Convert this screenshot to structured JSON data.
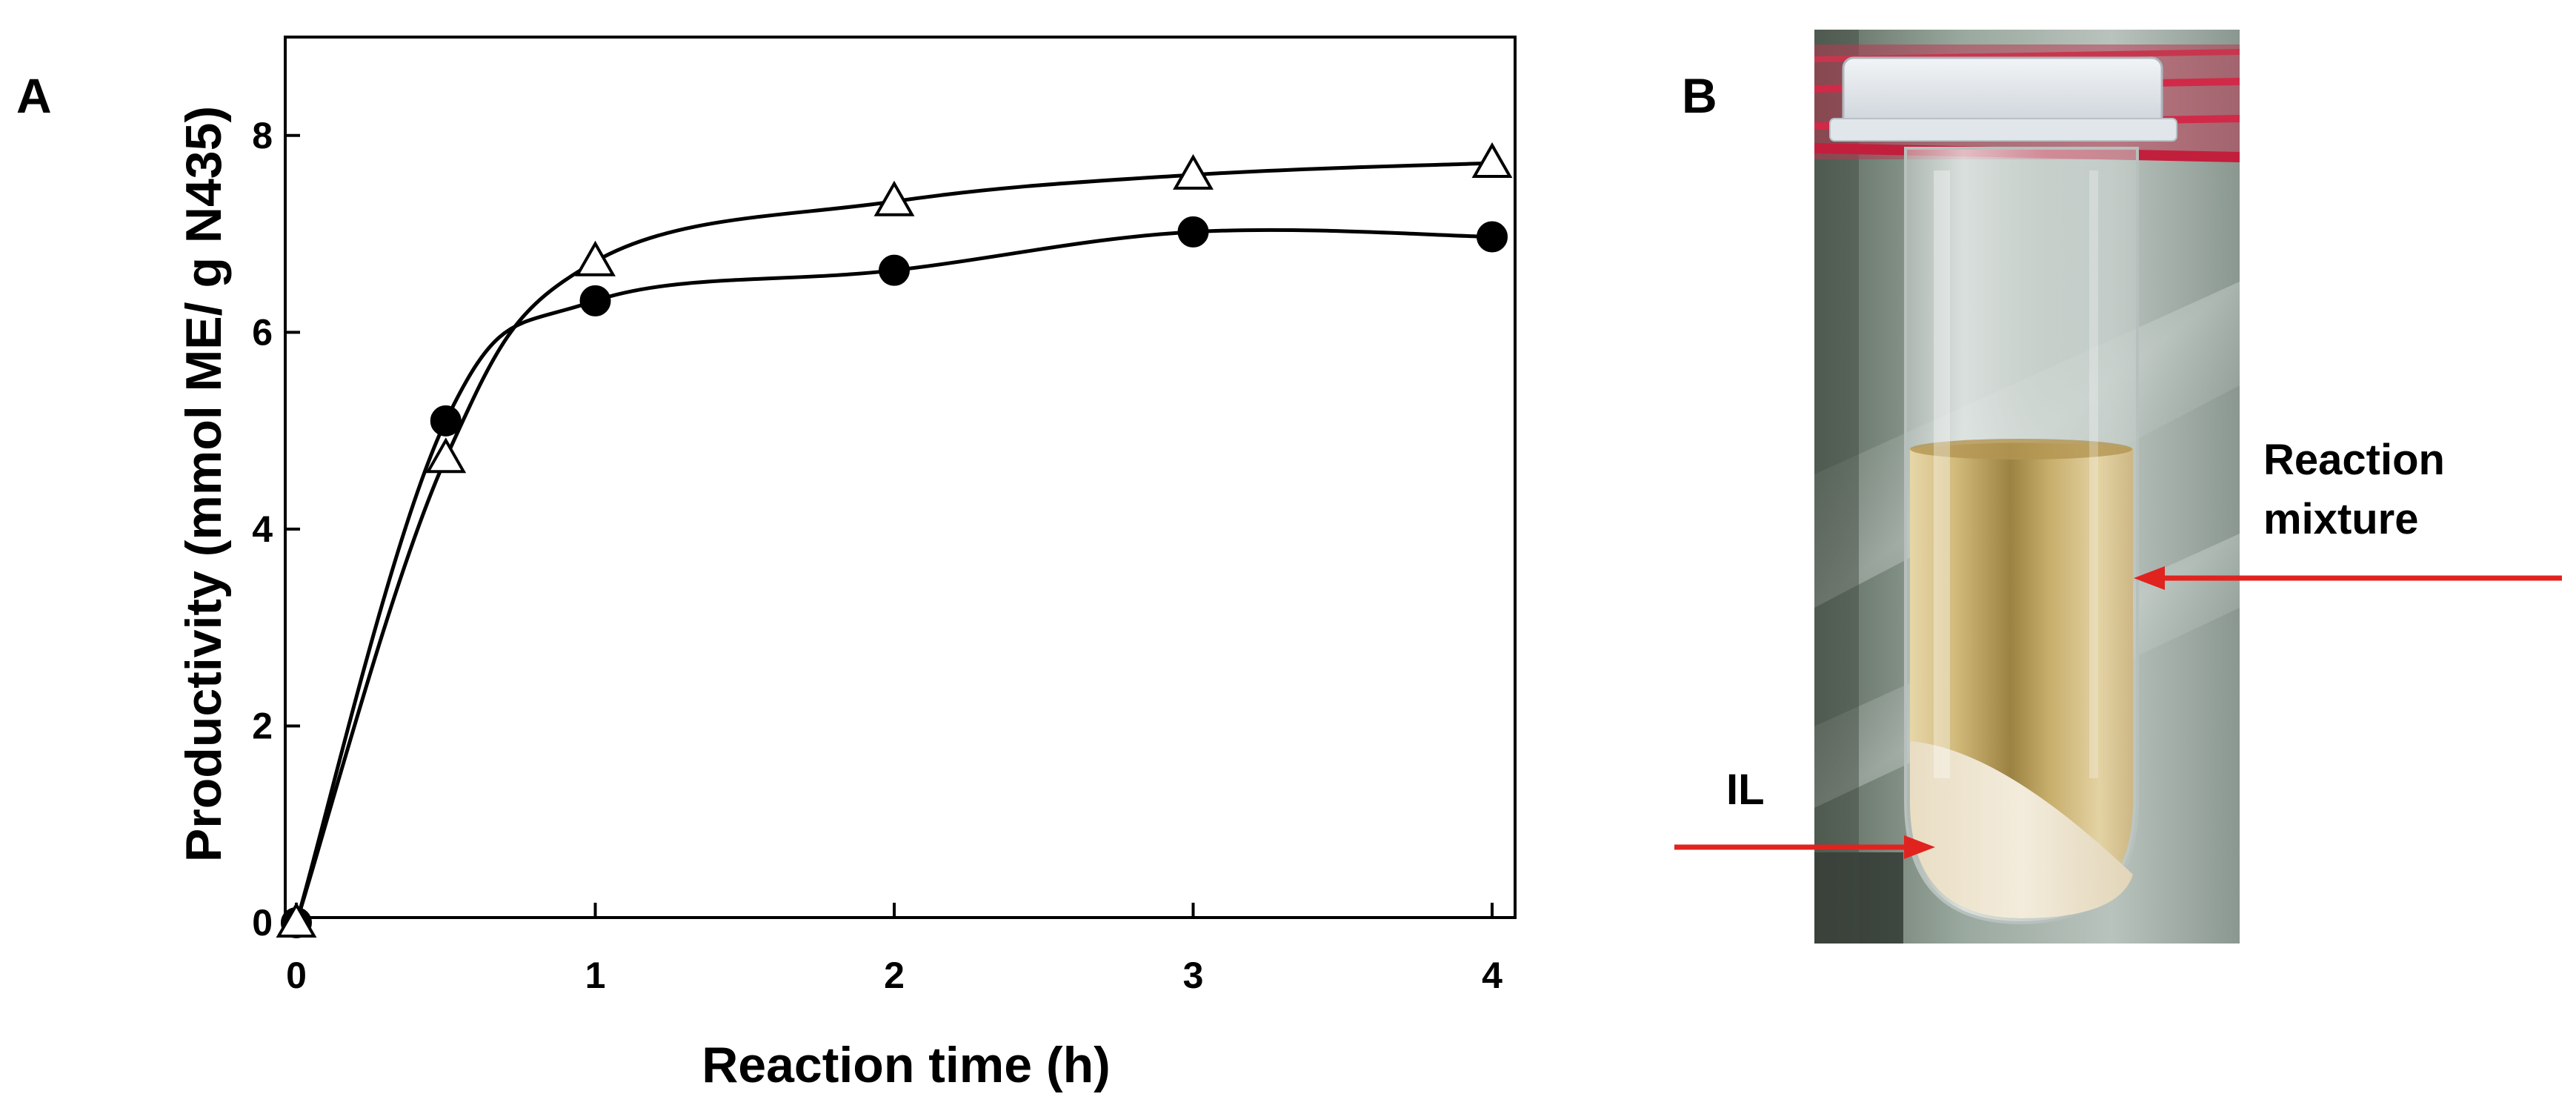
{
  "panel_a_letter": "A",
  "panel_b_letter": "B",
  "chart_data": {
    "type": "line",
    "title": "",
    "xlabel": "Reaction time (h)",
    "ylabel": "Productivity (mmol ME/ g N435)",
    "xlim": [
      0,
      4.2
    ],
    "ylim": [
      0,
      9
    ],
    "xticks": [
      0,
      1,
      2,
      3,
      4
    ],
    "yticks": [
      0,
      2,
      4,
      6,
      8
    ],
    "grid": false,
    "series": [
      {
        "marker": "filled-circle",
        "color": "#000000",
        "x": [
          0,
          0.5,
          1,
          2,
          3,
          4
        ],
        "y": [
          0,
          5.1,
          6.32,
          6.63,
          7.02,
          6.97
        ]
      },
      {
        "marker": "open-triangle",
        "color": "#000000",
        "x": [
          0,
          0.5,
          1,
          2,
          3,
          4
        ],
        "y": [
          0,
          4.72,
          6.72,
          7.33,
          7.6,
          7.72
        ]
      }
    ]
  },
  "photo": {
    "labels": {
      "reaction_mixture_line1": "Reaction",
      "reaction_mixture_line2": "mixture",
      "il": "IL"
    },
    "colors": {
      "arrow": "#e0231f",
      "rack": "#c8364e",
      "liquid": "#c9ad6a",
      "il_phase": "#eee3cc"
    }
  }
}
